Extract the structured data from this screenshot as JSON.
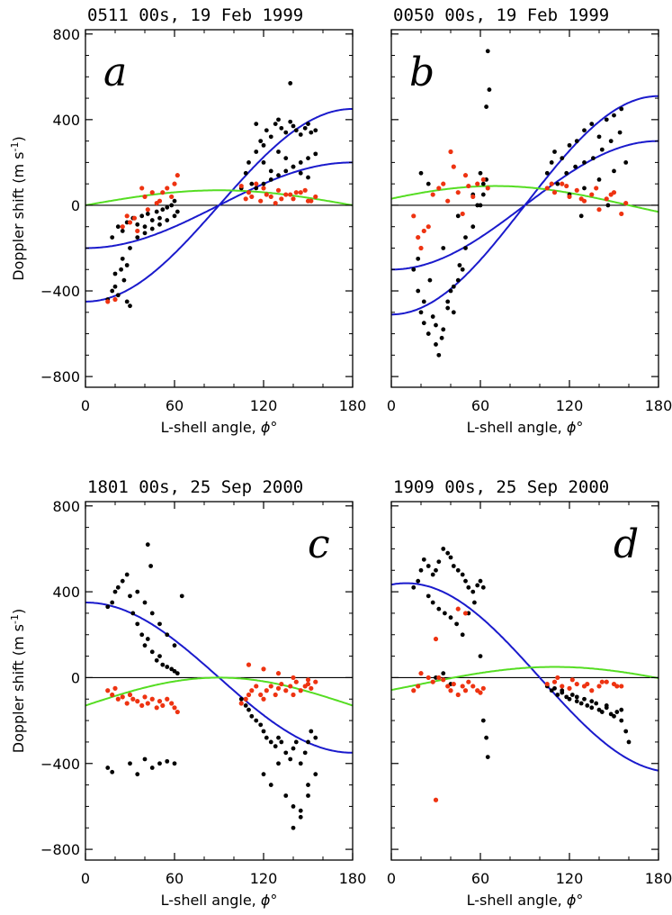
{
  "figure": {
    "ylabel_parts": {
      "main": "Doppler shift  (m s",
      "sup": "-1",
      "close": ")"
    },
    "xlabel_parts": {
      "main": "L-shell angle, ",
      "phi": "ϕ",
      "deg": "°"
    },
    "colors": {
      "black_points": "#000000",
      "red_points": "#ee3311",
      "blue_curve": "#1a1acc",
      "green_curve": "#55dd22",
      "zero_line": "#000000"
    }
  },
  "chart_data": [
    {
      "type": "scatter",
      "panel": "a",
      "title": "0511 00s,  19 Feb 1999",
      "xlim": [
        0,
        180
      ],
      "ylim": [
        -850,
        820
      ],
      "xticks": [
        0,
        60,
        120,
        180
      ],
      "yticks": [
        -800,
        -400,
        0,
        400,
        800
      ],
      "xtick_labels": [
        "0",
        "60",
        "120",
        "180"
      ],
      "ytick_labels": [
        "−800",
        "−400",
        "0",
        "400",
        "800"
      ],
      "zero_line": 0,
      "curves": [
        {
          "color": "blue",
          "amplitude": 450,
          "phase": 180,
          "offset": 0
        },
        {
          "color": "blue",
          "amplitude": 200,
          "phase": 180,
          "offset": 0
        },
        {
          "color": "green",
          "amplitude": 70,
          "phase": 90,
          "offset": 0
        }
      ],
      "scatter_black": {
        "x": [
          15,
          18,
          20,
          22,
          24,
          26,
          28,
          30,
          18,
          22,
          25,
          28,
          32,
          35,
          38,
          40,
          42,
          45,
          48,
          50,
          52,
          55,
          58,
          60,
          62,
          30,
          35,
          40,
          45,
          50,
          55,
          60,
          25,
          28,
          20,
          105,
          108,
          110,
          112,
          115,
          118,
          120,
          122,
          125,
          128,
          130,
          132,
          135,
          138,
          140,
          142,
          145,
          148,
          150,
          152,
          155,
          110,
          115,
          120,
          125,
          130,
          135,
          140,
          145,
          150,
          155,
          120,
          125,
          130,
          135,
          140,
          145,
          150,
          138,
          115
        ],
        "y": [
          -440,
          -400,
          -380,
          -420,
          -300,
          -350,
          -450,
          -470,
          -150,
          -100,
          -120,
          -80,
          -60,
          -90,
          -50,
          -100,
          -40,
          -70,
          -30,
          -60,
          -20,
          -10,
          0,
          20,
          -30,
          -200,
          -150,
          -130,
          -110,
          -90,
          -70,
          -50,
          -250,
          -280,
          -320,
          80,
          150,
          200,
          100,
          250,
          300,
          280,
          350,
          320,
          380,
          400,
          360,
          340,
          390,
          370,
          350,
          330,
          360,
          380,
          340,
          350,
          60,
          80,
          100,
          120,
          140,
          160,
          180,
          200,
          220,
          240,
          200,
          160,
          250,
          220,
          180,
          150,
          130,
          570,
          380
        ]
      },
      "scatter_red": {
        "x": [
          15,
          20,
          25,
          30,
          35,
          40,
          45,
          50,
          55,
          60,
          62,
          38,
          42,
          48,
          52,
          58,
          33,
          28,
          105,
          110,
          115,
          120,
          125,
          130,
          135,
          140,
          145,
          150,
          155,
          108,
          118,
          128,
          138,
          148,
          112,
          122,
          132,
          142,
          152
        ],
        "y": [
          -450,
          -440,
          -100,
          -80,
          -120,
          40,
          60,
          20,
          80,
          100,
          140,
          80,
          -20,
          10,
          60,
          40,
          -60,
          -50,
          90,
          60,
          100,
          80,
          40,
          70,
          50,
          30,
          60,
          20,
          40,
          30,
          20,
          10,
          50,
          70,
          40,
          50,
          30,
          60,
          20
        ]
      }
    },
    {
      "type": "scatter",
      "panel": "b",
      "title": "0050 00s,  19 Feb 1999",
      "xlim": [
        0,
        180
      ],
      "ylim": [
        -850,
        820
      ],
      "xticks": [
        0,
        60,
        120,
        180
      ],
      "yticks": [
        -800,
        -400,
        0,
        400,
        800
      ],
      "xtick_labels": [
        "0",
        "60",
        "120",
        "180"
      ],
      "ytick_labels": [
        "",
        "",
        "",
        "",
        ""
      ],
      "zero_line": 0,
      "curves": [
        {
          "color": "blue",
          "amplitude": 510,
          "phase": 180,
          "offset": 0
        },
        {
          "color": "blue",
          "amplitude": 300,
          "phase": 180,
          "offset": 0
        },
        {
          "color": "green",
          "amplitude": 90,
          "phase": 70,
          "offset": 0
        }
      ],
      "scatter_black": {
        "x": [
          15,
          18,
          20,
          22,
          25,
          28,
          30,
          32,
          35,
          38,
          40,
          42,
          45,
          48,
          50,
          55,
          60,
          62,
          18,
          22,
          26,
          30,
          34,
          38,
          42,
          46,
          50,
          55,
          60,
          64,
          20,
          25,
          35,
          45,
          58,
          62,
          65,
          64,
          66,
          105,
          108,
          110,
          115,
          120,
          125,
          130,
          135,
          140,
          145,
          150,
          155,
          112,
          118,
          124,
          130,
          136,
          142,
          148,
          154,
          120,
          130,
          140,
          150,
          158,
          128,
          146
        ],
        "y": [
          -300,
          -400,
          -500,
          -550,
          -600,
          -520,
          -650,
          -700,
          -580,
          -450,
          -400,
          -500,
          -350,
          -300,
          -200,
          -100,
          0,
          100,
          -250,
          -450,
          -350,
          -560,
          -620,
          -480,
          -380,
          -280,
          -150,
          50,
          150,
          120,
          150,
          100,
          -200,
          -50,
          0,
          50,
          720,
          460,
          540,
          150,
          200,
          250,
          220,
          280,
          300,
          350,
          380,
          320,
          400,
          420,
          450,
          100,
          150,
          180,
          200,
          220,
          260,
          300,
          340,
          50,
          80,
          120,
          160,
          200,
          -50,
          0
        ]
      },
      "scatter_red": {
        "x": [
          15,
          18,
          20,
          25,
          28,
          32,
          35,
          40,
          42,
          45,
          50,
          52,
          55,
          58,
          62,
          65,
          22,
          38,
          48,
          105,
          110,
          115,
          120,
          125,
          130,
          135,
          140,
          145,
          150,
          155,
          108,
          118,
          128,
          138,
          148,
          158
        ],
        "y": [
          -50,
          -150,
          -200,
          -100,
          50,
          80,
          100,
          250,
          180,
          60,
          140,
          90,
          40,
          100,
          120,
          80,
          -120,
          20,
          -40,
          80,
          60,
          100,
          40,
          70,
          20,
          50,
          -20,
          30,
          60,
          -40,
          100,
          90,
          30,
          80,
          50,
          10
        ]
      }
    },
    {
      "type": "scatter",
      "panel": "c",
      "title": "1801 00s,  25 Sep 2000",
      "xlim": [
        0,
        180
      ],
      "ylim": [
        -850,
        820
      ],
      "xticks": [
        0,
        60,
        120,
        180
      ],
      "yticks": [
        -800,
        -400,
        0,
        400,
        800
      ],
      "xtick_labels": [
        "0",
        "60",
        "120",
        "180"
      ],
      "ytick_labels": [
        "−800",
        "−400",
        "0",
        "400",
        "800"
      ],
      "zero_line": 0,
      "curves": [
        {
          "color": "blue",
          "amplitude": 350,
          "phase": 0,
          "offset": 0
        },
        {
          "color": "green",
          "amplitude": 130,
          "phase": 90,
          "offset": -130
        }
      ],
      "scatter_black": {
        "x": [
          15,
          18,
          20,
          22,
          25,
          28,
          30,
          32,
          35,
          38,
          40,
          42,
          45,
          48,
          50,
          52,
          55,
          58,
          60,
          62,
          35,
          40,
          45,
          50,
          55,
          60,
          15,
          18,
          30,
          35,
          40,
          45,
          50,
          55,
          60,
          65,
          42,
          44,
          105,
          108,
          110,
          112,
          115,
          118,
          120,
          122,
          125,
          128,
          130,
          132,
          135,
          138,
          140,
          142,
          145,
          148,
          150,
          152,
          155,
          120,
          125,
          130,
          135,
          140,
          145,
          150,
          155,
          140,
          145,
          150
        ],
        "y": [
          330,
          350,
          400,
          420,
          450,
          480,
          380,
          300,
          250,
          200,
          150,
          180,
          120,
          80,
          100,
          60,
          50,
          40,
          30,
          20,
          400,
          350,
          300,
          250,
          200,
          150,
          -420,
          -440,
          -400,
          -450,
          -380,
          -420,
          -400,
          -390,
          -400,
          380,
          620,
          520,
          -100,
          -130,
          -150,
          -180,
          -200,
          -220,
          -250,
          -280,
          -300,
          -320,
          -280,
          -300,
          -350,
          -380,
          -330,
          -300,
          -400,
          -350,
          -300,
          -250,
          -280,
          -450,
          -500,
          -400,
          -550,
          -600,
          -650,
          -550,
          -450,
          -700,
          -620,
          -500
        ]
      },
      "scatter_red": {
        "x": [
          15,
          18,
          20,
          22,
          25,
          28,
          30,
          32,
          35,
          38,
          40,
          42,
          45,
          48,
          50,
          52,
          55,
          58,
          60,
          62,
          105,
          108,
          110,
          112,
          115,
          118,
          120,
          122,
          125,
          128,
          130,
          132,
          135,
          138,
          140,
          142,
          145,
          148,
          150,
          152,
          155,
          110,
          120,
          130,
          140,
          150
        ],
        "y": [
          -60,
          -80,
          -50,
          -100,
          -90,
          -120,
          -80,
          -100,
          -110,
          -130,
          -90,
          -120,
          -100,
          -140,
          -110,
          -130,
          -100,
          -120,
          -140,
          -160,
          -120,
          -100,
          -80,
          -60,
          -40,
          -80,
          -100,
          -60,
          -40,
          -80,
          -50,
          -30,
          -60,
          -40,
          -80,
          -20,
          -60,
          -40,
          -30,
          -50,
          -20,
          60,
          40,
          20,
          0,
          -10
        ]
      }
    },
    {
      "type": "scatter",
      "panel": "d",
      "title": "1909 00s,  25 Sep 2000",
      "xlim": [
        0,
        180
      ],
      "ylim": [
        -850,
        820
      ],
      "xticks": [
        0,
        60,
        120,
        180
      ],
      "yticks": [
        -800,
        -400,
        0,
        400,
        800
      ],
      "xtick_labels": [
        "0",
        "60",
        "120",
        "180"
      ],
      "ytick_labels": [
        "",
        "",
        "",
        "",
        ""
      ],
      "zero_line": 0,
      "curves": [
        {
          "color": "blue",
          "amplitude": 440,
          "phase": 10,
          "offset": 0
        },
        {
          "color": "green",
          "amplitude": 80,
          "phase": 110,
          "offset": -30
        }
      ],
      "scatter_black": {
        "x": [
          15,
          18,
          20,
          22,
          25,
          28,
          30,
          32,
          35,
          38,
          40,
          42,
          45,
          48,
          50,
          52,
          55,
          58,
          60,
          62,
          25,
          28,
          32,
          36,
          40,
          44,
          48,
          52,
          56,
          60,
          30,
          35,
          40,
          62,
          64,
          65,
          105,
          108,
          110,
          112,
          115,
          118,
          120,
          122,
          125,
          128,
          130,
          132,
          135,
          138,
          140,
          142,
          145,
          148,
          150,
          152,
          155,
          158,
          160,
          115,
          125,
          135,
          145,
          155
        ],
        "y": [
          420,
          450,
          500,
          550,
          520,
          480,
          500,
          540,
          600,
          580,
          560,
          520,
          500,
          480,
          450,
          420,
          400,
          430,
          450,
          420,
          380,
          350,
          320,
          300,
          280,
          250,
          200,
          300,
          350,
          100,
          0,
          20,
          -30,
          -200,
          -280,
          -370,
          -40,
          -60,
          -50,
          -80,
          -70,
          -90,
          -100,
          -80,
          -110,
          -120,
          -100,
          -130,
          -140,
          -120,
          -150,
          -160,
          -140,
          -170,
          -180,
          -160,
          -200,
          -250,
          -300,
          -60,
          -90,
          -110,
          -130,
          -150
        ]
      },
      "scatter_red": {
        "x": [
          15,
          18,
          20,
          25,
          28,
          30,
          32,
          35,
          38,
          40,
          42,
          45,
          48,
          50,
          52,
          55,
          58,
          60,
          62,
          45,
          50,
          30,
          105,
          110,
          115,
          120,
          125,
          130,
          135,
          140,
          145,
          150,
          155,
          112,
          122,
          132,
          142,
          152
        ],
        "y": [
          -60,
          -40,
          20,
          0,
          -20,
          180,
          0,
          -10,
          -40,
          -60,
          -30,
          -80,
          -40,
          -60,
          -20,
          -40,
          -60,
          -70,
          -50,
          320,
          300,
          -570,
          -30,
          -20,
          -40,
          -50,
          -30,
          -40,
          -60,
          -40,
          -20,
          -30,
          -40,
          0,
          -10,
          -30,
          -20,
          -40
        ]
      }
    }
  ]
}
